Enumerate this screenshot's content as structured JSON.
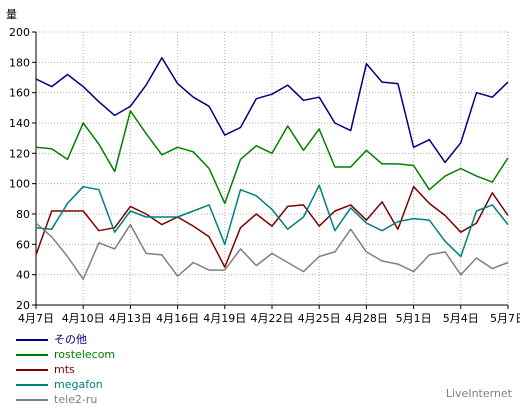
{
  "chart_data": {
    "type": "line",
    "ylabel": "量",
    "ylim": [
      20,
      200
    ],
    "yticks": [
      20,
      40,
      60,
      80,
      100,
      120,
      140,
      160,
      180,
      200
    ],
    "grid": true,
    "legend_position": "bottom-left",
    "categories": [
      "4月7日",
      "4月8日",
      "4月9日",
      "4月10日",
      "4月11日",
      "4月12日",
      "4月13日",
      "4月14日",
      "4月15日",
      "4月16日",
      "4月17日",
      "4月18日",
      "4月19日",
      "4月20日",
      "4月21日",
      "4月22日",
      "4月23日",
      "4月24日",
      "4月25日",
      "4月26日",
      "4月27日",
      "4月28日",
      "4月29日",
      "4月30日",
      "5月1日",
      "5月2日",
      "5月3日",
      "5月4日",
      "5月5日",
      "5月6日",
      "5月7日"
    ],
    "xtick_labels": [
      "4月7日",
      "4月10日",
      "4月13日",
      "4月16日",
      "4月19日",
      "4月22日",
      "4月25日",
      "4月28日",
      "5月1日",
      "5月4日",
      "5月7日"
    ],
    "series": [
      {
        "name": "その他",
        "color": "#000080",
        "values": [
          169,
          164,
          172,
          164,
          154,
          145,
          151,
          165,
          183,
          166,
          157,
          151,
          132,
          137,
          156,
          159,
          165,
          155,
          157,
          140,
          135,
          179,
          167,
          166,
          124,
          129,
          114,
          127,
          160,
          157,
          167
        ]
      },
      {
        "name": "rostelecom",
        "color": "#008000",
        "values": [
          124,
          123,
          116,
          140,
          126,
          108,
          148,
          133,
          119,
          124,
          121,
          110,
          87,
          116,
          125,
          120,
          138,
          122,
          136,
          111,
          111,
          122,
          113,
          113,
          112,
          96,
          105,
          110,
          105,
          101,
          117
        ]
      },
      {
        "name": "mts",
        "color": "#800000",
        "values": [
          53,
          82,
          82,
          82,
          69,
          71,
          85,
          80,
          73,
          78,
          72,
          65,
          45,
          71,
          80,
          72,
          85,
          86,
          72,
          82,
          86,
          76,
          88,
          70,
          98,
          87,
          79,
          68,
          74,
          94,
          79
        ]
      },
      {
        "name": "megafon",
        "color": "#008080",
        "values": [
          71,
          70,
          87,
          98,
          96,
          68,
          82,
          78,
          78,
          78,
          82,
          86,
          60,
          96,
          92,
          83,
          70,
          78,
          99,
          69,
          84,
          74,
          69,
          75,
          77,
          76,
          62,
          52,
          82,
          86,
          73
        ]
      },
      {
        "name": "tele2-ru",
        "color": "#808080",
        "values": [
          74,
          65,
          52,
          37,
          61,
          57,
          73,
          54,
          53,
          39,
          48,
          43,
          43,
          57,
          46,
          54,
          48,
          42,
          52,
          55,
          70,
          55,
          49,
          47,
          42,
          53,
          55,
          40,
          51,
          44,
          48
        ]
      }
    ]
  },
  "watermark": "LiveInternet"
}
